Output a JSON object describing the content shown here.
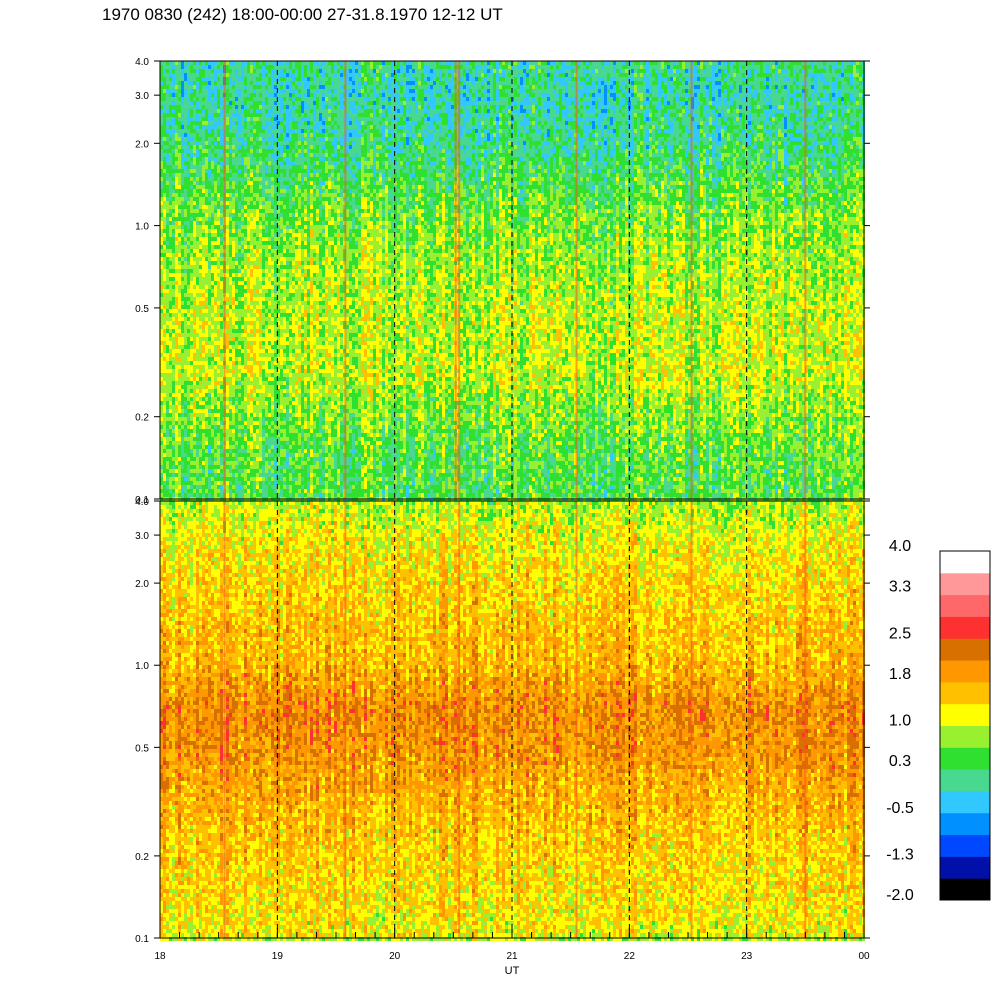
{
  "title": "1970 0830 (242) 18:00-00:00 27-31.8.1970  12-12 UT",
  "chart_data": [
    {
      "type": "heatmap",
      "panel": "top",
      "x_tick_labels": [
        "18",
        "19",
        "20",
        "21",
        "22",
        "23",
        "00"
      ],
      "x_hours": [
        18,
        19,
        20,
        21,
        22,
        23,
        24
      ],
      "y_scale": "log",
      "ylim": [
        0.1,
        4.0
      ],
      "y_tick_labels": [
        "0.1",
        "0.2",
        "0.5",
        "1.0",
        "2.0",
        "3.0",
        "4.0"
      ],
      "y_ticks": [
        0.1,
        0.2,
        0.5,
        1.0,
        2.0,
        3.0,
        4.0
      ],
      "dashed_hours": [
        19,
        20,
        21,
        22,
        23
      ],
      "profile_levels": [
        {
          "y": 0.1,
          "v": 0.45
        },
        {
          "y": 0.15,
          "v": 0.5
        },
        {
          "y": 0.2,
          "v": 0.7
        },
        {
          "y": 0.3,
          "v": 1.0
        },
        {
          "y": 0.5,
          "v": 0.95
        },
        {
          "y": 0.7,
          "v": 0.85
        },
        {
          "y": 1.0,
          "v": 0.7
        },
        {
          "y": 1.5,
          "v": 0.4
        },
        {
          "y": 2.0,
          "v": 0.15
        },
        {
          "y": 3.0,
          "v": 0.0
        },
        {
          "y": 4.0,
          "v": 0.1
        }
      ],
      "bright_streak_hours": [
        18.55,
        19.58,
        20.52,
        20.55,
        21.55,
        22.53,
        23.5
      ]
    },
    {
      "type": "heatmap",
      "panel": "bottom",
      "x_tick_labels": [
        "18",
        "19",
        "20",
        "21",
        "22",
        "23",
        "00"
      ],
      "x_hours": [
        18,
        19,
        20,
        21,
        22,
        23,
        24
      ],
      "xlabel": "UT",
      "y_scale": "log",
      "ylim": [
        0.1,
        4.0
      ],
      "y_tick_labels": [
        "0.1",
        "0.2",
        "0.5",
        "1.0",
        "2.0",
        "3.0",
        "4.0"
      ],
      "y_ticks": [
        0.1,
        0.2,
        0.5,
        1.0,
        2.0,
        3.0,
        4.0
      ],
      "dashed_hours": [
        19,
        20,
        21,
        22,
        23
      ],
      "profile_levels": [
        {
          "y": 0.1,
          "v": 1.2
        },
        {
          "y": 0.15,
          "v": 1.4
        },
        {
          "y": 0.2,
          "v": 1.5
        },
        {
          "y": 0.3,
          "v": 1.7
        },
        {
          "y": 0.5,
          "v": 2.0
        },
        {
          "y": 0.7,
          "v": 2.1
        },
        {
          "y": 1.0,
          "v": 1.7
        },
        {
          "y": 1.5,
          "v": 1.55
        },
        {
          "y": 2.0,
          "v": 1.45
        },
        {
          "y": 3.0,
          "v": 1.2
        },
        {
          "y": 4.0,
          "v": 0.9
        }
      ],
      "bright_streak_hours": [
        18.55,
        19.58,
        20.55,
        21.55,
        22.53,
        23.5
      ]
    }
  ],
  "colorbar": {
    "tick_labels": [
      "4.0",
      "3.3",
      "2.5",
      "1.8",
      "1.0",
      "0.3",
      "-0.5",
      "-1.3",
      "-2.0"
    ],
    "tick_values": [
      4.0,
      3.3,
      2.5,
      1.8,
      1.0,
      0.3,
      -0.5,
      -1.3,
      -2.0
    ],
    "colors_bottom_to_top": [
      "#000000",
      "#0010a8",
      "#0048ff",
      "#0090ff",
      "#30c8ff",
      "#48d890",
      "#30e030",
      "#98f030",
      "#ffff00",
      "#ffc000",
      "#ff9800",
      "#d87000",
      "#ff3030",
      "#ff6868",
      "#ff9898",
      "#ffffff"
    ],
    "range": [
      -2.0,
      4.0
    ]
  }
}
